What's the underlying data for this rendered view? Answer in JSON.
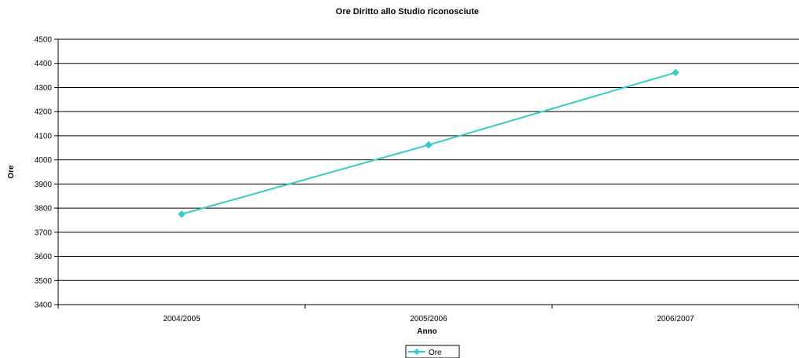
{
  "chart_data": {
    "type": "line",
    "title": "Ore Diritto allo Studio riconosciute",
    "xlabel": "Anno",
    "ylabel": "Ore",
    "categories": [
      "2004/2005",
      "2005/2006",
      "2006/2007"
    ],
    "series": [
      {
        "name": "Ore",
        "values": [
          3775,
          4062,
          4362
        ],
        "color": "#33cccc",
        "marker": "diamond"
      }
    ],
    "ylim": [
      3400,
      4500
    ],
    "yticks": [
      "3400",
      "3500",
      "3600",
      "3700",
      "3800",
      "3900",
      "4000",
      "4100",
      "4200",
      "4300",
      "4400",
      "4500"
    ],
    "grid": "horizontal",
    "legend": "bottom-center"
  }
}
